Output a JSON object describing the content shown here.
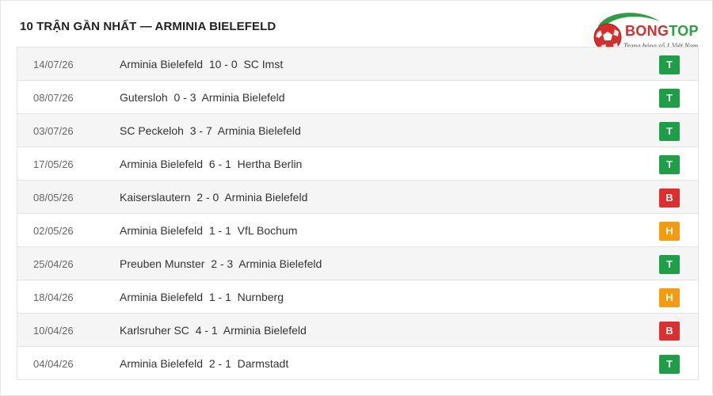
{
  "header": {
    "title": "10 TRẬN GẦN NHẤT — ARMINIA BIELEFELD"
  },
  "logo": {
    "brand_part1": "BONG",
    "brand_part2": "TOP",
    "tagline": "Trang bóng số 1 Việt Nam",
    "colors": {
      "red": "#d32f2f",
      "green": "#2e9d46"
    }
  },
  "result_colors": {
    "T": "#1e9e47",
    "B": "#dc3030",
    "H": "#f39c12"
  },
  "matches": [
    {
      "date": "14/07/26",
      "home": "Arminia Bielefeld",
      "score": "10 - 0",
      "away": "SC Imst",
      "result": "T"
    },
    {
      "date": "08/07/26",
      "home": "Gutersloh",
      "score": "0 - 3",
      "away": "Arminia Bielefeld",
      "result": "T"
    },
    {
      "date": "03/07/26",
      "home": "SC Peckeloh",
      "score": "3 - 7",
      "away": "Arminia Bielefeld",
      "result": "T"
    },
    {
      "date": "17/05/26",
      "home": "Arminia Bielefeld",
      "score": "6 - 1",
      "away": "Hertha Berlin",
      "result": "T"
    },
    {
      "date": "08/05/26",
      "home": "Kaiserslautern",
      "score": "2 - 0",
      "away": "Arminia Bielefeld",
      "result": "B"
    },
    {
      "date": "02/05/26",
      "home": "Arminia Bielefeld",
      "score": "1 - 1",
      "away": "VfL Bochum",
      "result": "H"
    },
    {
      "date": "25/04/26",
      "home": "Preuben Munster",
      "score": "2 - 3",
      "away": "Arminia Bielefeld",
      "result": "T"
    },
    {
      "date": "18/04/26",
      "home": "Arminia Bielefeld",
      "score": "1 - 1",
      "away": "Nurnberg",
      "result": "H"
    },
    {
      "date": "10/04/26",
      "home": "Karlsruher SC",
      "score": "4 - 1",
      "away": "Arminia Bielefeld",
      "result": "B"
    },
    {
      "date": "04/04/26",
      "home": "Arminia Bielefeld",
      "score": "2 - 1",
      "away": "Darmstadt",
      "result": "T"
    }
  ]
}
